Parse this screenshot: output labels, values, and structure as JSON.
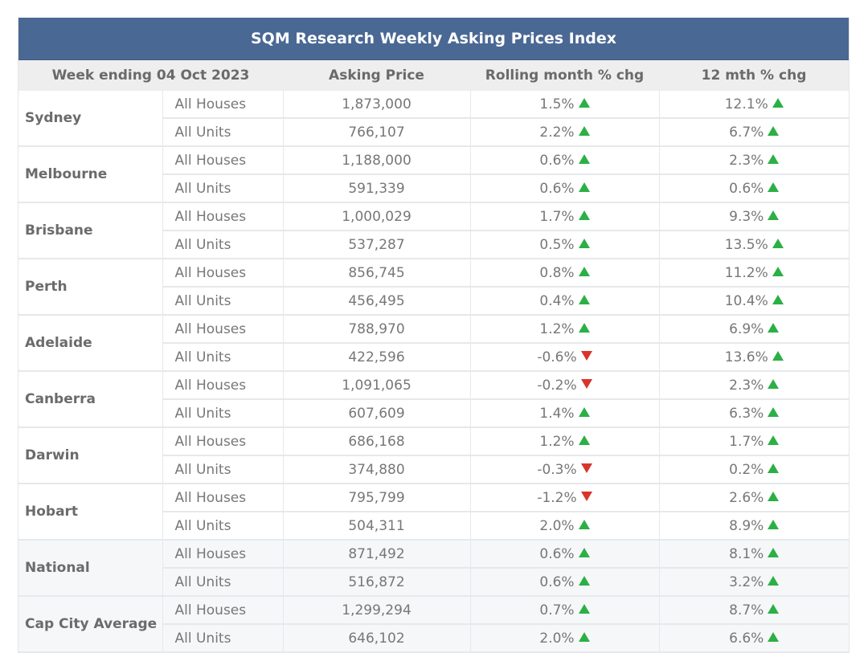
{
  "title": "SQM Research Weekly Asking Prices Index",
  "headers": {
    "week": "Week ending 04 Oct 2023",
    "price": "Asking Price",
    "month": "Rolling month % chg",
    "year": "12 mth % chg"
  },
  "colors": {
    "header_bg": "#4a6894",
    "up": "#2bb045",
    "down": "#d9342b"
  },
  "rows": [
    {
      "city": "Sydney",
      "items": [
        {
          "type": "All Houses",
          "price": "1,873,000",
          "month": "1.5%",
          "month_dir": "up",
          "year": "12.1%",
          "year_dir": "up"
        },
        {
          "type": "All Units",
          "price": "766,107",
          "month": "2.2%",
          "month_dir": "up",
          "year": "6.7%",
          "year_dir": "up"
        }
      ]
    },
    {
      "city": "Melbourne",
      "items": [
        {
          "type": "All Houses",
          "price": "1,188,000",
          "month": "0.6%",
          "month_dir": "up",
          "year": "2.3%",
          "year_dir": "up"
        },
        {
          "type": "All Units",
          "price": "591,339",
          "month": "0.6%",
          "month_dir": "up",
          "year": "0.6%",
          "year_dir": "up"
        }
      ]
    },
    {
      "city": "Brisbane",
      "items": [
        {
          "type": "All Houses",
          "price": "1,000,029",
          "month": "1.7%",
          "month_dir": "up",
          "year": "9.3%",
          "year_dir": "up"
        },
        {
          "type": "All Units",
          "price": "537,287",
          "month": "0.5%",
          "month_dir": "up",
          "year": "13.5%",
          "year_dir": "up"
        }
      ]
    },
    {
      "city": "Perth",
      "items": [
        {
          "type": "All Houses",
          "price": "856,745",
          "month": "0.8%",
          "month_dir": "up",
          "year": "11.2%",
          "year_dir": "up"
        },
        {
          "type": "All Units",
          "price": "456,495",
          "month": "0.4%",
          "month_dir": "up",
          "year": "10.4%",
          "year_dir": "up"
        }
      ]
    },
    {
      "city": "Adelaide",
      "items": [
        {
          "type": "All Houses",
          "price": "788,970",
          "month": "1.2%",
          "month_dir": "up",
          "year": "6.9%",
          "year_dir": "up"
        },
        {
          "type": "All Units",
          "price": "422,596",
          "month": "-0.6%",
          "month_dir": "down",
          "year": "13.6%",
          "year_dir": "up"
        }
      ]
    },
    {
      "city": "Canberra",
      "items": [
        {
          "type": "All Houses",
          "price": "1,091,065",
          "month": "-0.2%",
          "month_dir": "down",
          "year": "2.3%",
          "year_dir": "up"
        },
        {
          "type": "All Units",
          "price": "607,609",
          "month": "1.4%",
          "month_dir": "up",
          "year": "6.3%",
          "year_dir": "up"
        }
      ]
    },
    {
      "city": "Darwin",
      "items": [
        {
          "type": "All Houses",
          "price": "686,168",
          "month": "1.2%",
          "month_dir": "up",
          "year": "1.7%",
          "year_dir": "up"
        },
        {
          "type": "All Units",
          "price": "374,880",
          "month": "-0.3%",
          "month_dir": "down",
          "year": "0.2%",
          "year_dir": "up"
        }
      ]
    },
    {
      "city": "Hobart",
      "items": [
        {
          "type": "All Houses",
          "price": "795,799",
          "month": "-1.2%",
          "month_dir": "down",
          "year": "2.6%",
          "year_dir": "up"
        },
        {
          "type": "All Units",
          "price": "504,311",
          "month": "2.0%",
          "month_dir": "up",
          "year": "8.9%",
          "year_dir": "up"
        }
      ]
    },
    {
      "city": "National",
      "shaded": true,
      "items": [
        {
          "type": "All Houses",
          "price": "871,492",
          "month": "0.6%",
          "month_dir": "up",
          "year": "8.1%",
          "year_dir": "up"
        },
        {
          "type": "All Units",
          "price": "516,872",
          "month": "0.6%",
          "month_dir": "up",
          "year": "3.2%",
          "year_dir": "up"
        }
      ]
    },
    {
      "city": "Cap City Average",
      "shaded": true,
      "items": [
        {
          "type": "All Houses",
          "price": "1,299,294",
          "month": "0.7%",
          "month_dir": "up",
          "year": "8.7%",
          "year_dir": "up"
        },
        {
          "type": "All Units",
          "price": "646,102",
          "month": "2.0%",
          "month_dir": "up",
          "year": "6.6%",
          "year_dir": "up"
        }
      ]
    }
  ]
}
